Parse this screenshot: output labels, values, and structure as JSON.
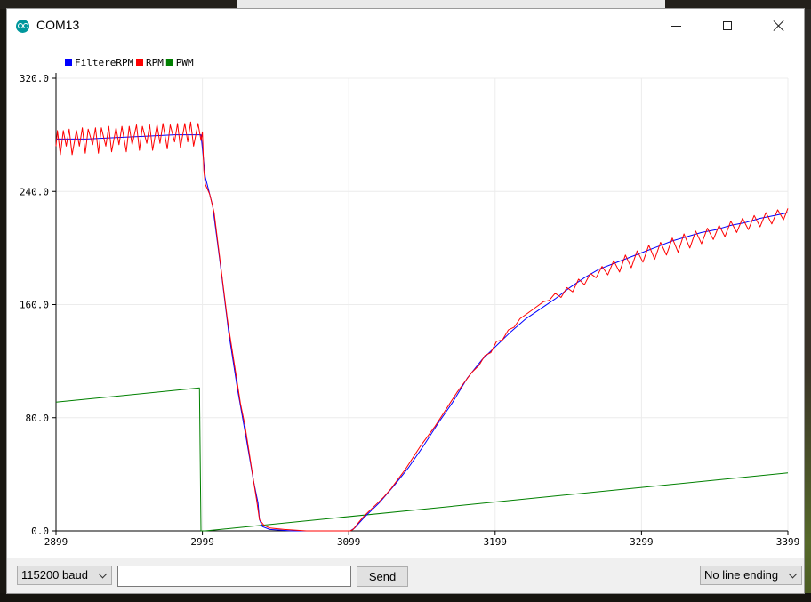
{
  "window": {
    "title": "COM13",
    "controls": [
      "minimize",
      "maximize",
      "close"
    ]
  },
  "toolbar": {
    "baud": "115200 baud",
    "input_value": "",
    "send_label": "Send",
    "line_ending": "No line ending"
  },
  "chart_data": {
    "type": "line",
    "title": "",
    "xlabel": "",
    "ylabel": "",
    "xlim": [
      2899,
      3399
    ],
    "ylim": [
      0,
      320
    ],
    "x_ticks": [
      "2899",
      "2999",
      "3099",
      "3199",
      "3299",
      "3399"
    ],
    "y_ticks": [
      "0.0",
      "80.0",
      "160.0",
      "240.0",
      "320.0"
    ],
    "grid": true,
    "legend_position": "top-left",
    "series": [
      {
        "name": "FiltereRPM",
        "color": "#0000ff",
        "points": [
          [
            2899,
            277
          ],
          [
            2920,
            277
          ],
          [
            2940,
            278
          ],
          [
            2960,
            279
          ],
          [
            2980,
            280
          ],
          [
            2998,
            280
          ],
          [
            3001,
            250
          ],
          [
            3006,
            230
          ],
          [
            3011,
            190
          ],
          [
            3017,
            140
          ],
          [
            3023,
            100
          ],
          [
            3029,
            65
          ],
          [
            3034,
            35
          ],
          [
            3037,
            20
          ],
          [
            3038,
            8
          ],
          [
            3040,
            3
          ],
          [
            3045,
            1
          ],
          [
            3060,
            0
          ],
          [
            3080,
            0
          ],
          [
            3100,
            0
          ],
          [
            3103,
            2
          ],
          [
            3110,
            10
          ],
          [
            3120,
            20
          ],
          [
            3130,
            32
          ],
          [
            3140,
            45
          ],
          [
            3150,
            60
          ],
          [
            3160,
            76
          ],
          [
            3170,
            91
          ],
          [
            3180,
            108
          ],
          [
            3190,
            121
          ],
          [
            3200,
            131
          ],
          [
            3210,
            141
          ],
          [
            3220,
            150
          ],
          [
            3230,
            157
          ],
          [
            3240,
            164
          ],
          [
            3250,
            172
          ],
          [
            3260,
            179
          ],
          [
            3270,
            185
          ],
          [
            3280,
            189
          ],
          [
            3290,
            193
          ],
          [
            3300,
            197
          ],
          [
            3310,
            201
          ],
          [
            3320,
            205
          ],
          [
            3330,
            208
          ],
          [
            3340,
            211
          ],
          [
            3350,
            213
          ],
          [
            3360,
            216
          ],
          [
            3370,
            218
          ],
          [
            3380,
            221
          ],
          [
            3390,
            223
          ],
          [
            3399,
            225
          ]
        ]
      },
      {
        "name": "RPM",
        "color": "#ff0000",
        "points": [
          [
            2899,
            272
          ],
          [
            2900,
            283
          ],
          [
            2902,
            266
          ],
          [
            2904,
            283
          ],
          [
            2906,
            272
          ],
          [
            2908,
            284
          ],
          [
            2910,
            266
          ],
          [
            2913,
            283
          ],
          [
            2915,
            272
          ],
          [
            2917,
            285
          ],
          [
            2919,
            267
          ],
          [
            2921,
            284
          ],
          [
            2924,
            273
          ],
          [
            2926,
            285
          ],
          [
            2928,
            267
          ],
          [
            2930,
            285
          ],
          [
            2933,
            272
          ],
          [
            2935,
            286
          ],
          [
            2937,
            268
          ],
          [
            2940,
            285
          ],
          [
            2942,
            273
          ],
          [
            2944,
            286
          ],
          [
            2947,
            268
          ],
          [
            2949,
            286
          ],
          [
            2951,
            273
          ],
          [
            2954,
            287
          ],
          [
            2956,
            269
          ],
          [
            2958,
            286
          ],
          [
            2961,
            274
          ],
          [
            2963,
            287
          ],
          [
            2965,
            269
          ],
          [
            2968,
            287
          ],
          [
            2970,
            274
          ],
          [
            2972,
            288
          ],
          [
            2975,
            270
          ],
          [
            2977,
            287
          ],
          [
            2980,
            275
          ],
          [
            2982,
            288
          ],
          [
            2984,
            271
          ],
          [
            2987,
            288
          ],
          [
            2989,
            275
          ],
          [
            2991,
            289
          ],
          [
            2993,
            272
          ],
          [
            2996,
            288
          ],
          [
            2998,
            276
          ],
          [
            2999,
            282
          ],
          [
            3000,
            255
          ],
          [
            3001,
            245
          ],
          [
            3004,
            238
          ],
          [
            3007,
            225
          ],
          [
            3010,
            200
          ],
          [
            3013,
            175
          ],
          [
            3016,
            150
          ],
          [
            3019,
            130
          ],
          [
            3022,
            110
          ],
          [
            3025,
            90
          ],
          [
            3028,
            75
          ],
          [
            3031,
            55
          ],
          [
            3034,
            35
          ],
          [
            3036,
            22
          ],
          [
            3038,
            8
          ],
          [
            3041,
            4
          ],
          [
            3045,
            2
          ],
          [
            3055,
            1
          ],
          [
            3070,
            0
          ],
          [
            3090,
            0
          ],
          [
            3100,
            0
          ],
          [
            3102,
            1
          ],
          [
            3105,
            5
          ],
          [
            3109,
            10
          ],
          [
            3113,
            14
          ],
          [
            3118,
            19
          ],
          [
            3123,
            24
          ],
          [
            3128,
            30
          ],
          [
            3133,
            37
          ],
          [
            3138,
            44
          ],
          [
            3143,
            52
          ],
          [
            3148,
            60
          ],
          [
            3153,
            67
          ],
          [
            3158,
            74
          ],
          [
            3163,
            82
          ],
          [
            3168,
            90
          ],
          [
            3173,
            98
          ],
          [
            3178,
            105
          ],
          [
            3183,
            112
          ],
          [
            3188,
            117
          ],
          [
            3192,
            124
          ],
          [
            3196,
            126
          ],
          [
            3200,
            134
          ],
          [
            3204,
            135
          ],
          [
            3208,
            142
          ],
          [
            3212,
            144
          ],
          [
            3216,
            150
          ],
          [
            3220,
            153
          ],
          [
            3224,
            156
          ],
          [
            3228,
            159
          ],
          [
            3232,
            162
          ],
          [
            3236,
            163
          ],
          [
            3240,
            168
          ],
          [
            3244,
            165
          ],
          [
            3248,
            172
          ],
          [
            3252,
            169
          ],
          [
            3256,
            178
          ],
          [
            3260,
            174
          ],
          [
            3264,
            182
          ],
          [
            3268,
            179
          ],
          [
            3272,
            187
          ],
          [
            3276,
            181
          ],
          [
            3280,
            191
          ],
          [
            3284,
            183
          ],
          [
            3288,
            195
          ],
          [
            3292,
            186
          ],
          [
            3296,
            198
          ],
          [
            3300,
            190
          ],
          [
            3304,
            202
          ],
          [
            3308,
            192
          ],
          [
            3312,
            204
          ],
          [
            3316,
            195
          ],
          [
            3320,
            207
          ],
          [
            3324,
            197
          ],
          [
            3328,
            210
          ],
          [
            3332,
            200
          ],
          [
            3336,
            212
          ],
          [
            3340,
            203
          ],
          [
            3344,
            214
          ],
          [
            3348,
            206
          ],
          [
            3352,
            216
          ],
          [
            3356,
            208
          ],
          [
            3360,
            219
          ],
          [
            3364,
            211
          ],
          [
            3368,
            221
          ],
          [
            3372,
            213
          ],
          [
            3376,
            223
          ],
          [
            3380,
            215
          ],
          [
            3384,
            225
          ],
          [
            3388,
            217
          ],
          [
            3392,
            227
          ],
          [
            3396,
            220
          ],
          [
            3399,
            228
          ]
        ]
      },
      {
        "name": "PWM",
        "color": "#008000",
        "points": [
          [
            2899,
            91
          ],
          [
            2997,
            101
          ],
          [
            2998,
            0
          ],
          [
            3001,
            0
          ],
          [
            3399,
            41
          ]
        ]
      }
    ]
  }
}
